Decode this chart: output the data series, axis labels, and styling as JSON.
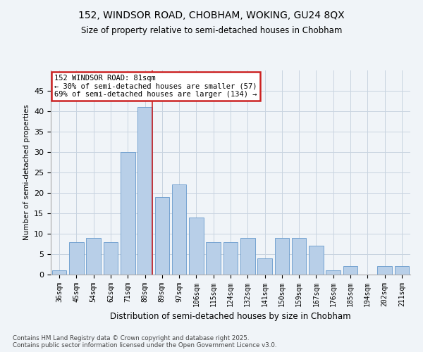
{
  "title_line1": "152, WINDSOR ROAD, CHOBHAM, WOKING, GU24 8QX",
  "title_line2": "Size of property relative to semi-detached houses in Chobham",
  "xlabel": "Distribution of semi-detached houses by size in Chobham",
  "ylabel": "Number of semi-detached properties",
  "categories": [
    "36sqm",
    "45sqm",
    "54sqm",
    "62sqm",
    "71sqm",
    "80sqm",
    "89sqm",
    "97sqm",
    "106sqm",
    "115sqm",
    "124sqm",
    "132sqm",
    "141sqm",
    "150sqm",
    "159sqm",
    "167sqm",
    "176sqm",
    "185sqm",
    "194sqm",
    "202sqm",
    "211sqm"
  ],
  "values": [
    1,
    8,
    9,
    8,
    30,
    41,
    19,
    22,
    14,
    8,
    8,
    9,
    4,
    9,
    9,
    7,
    1,
    2,
    0,
    2,
    2
  ],
  "bar_color": "#b8cfe8",
  "bar_edge_color": "#6699cc",
  "vline_color": "#cc2222",
  "vline_x_index": 5,
  "annotation_title": "152 WINDSOR ROAD: 81sqm",
  "annotation_line1": "← 30% of semi-detached houses are smaller (57)",
  "annotation_line2": "69% of semi-detached houses are larger (134) →",
  "annotation_box_edgecolor": "#cc2222",
  "ylim": [
    0,
    50
  ],
  "yticks": [
    0,
    5,
    10,
    15,
    20,
    25,
    30,
    35,
    40,
    45
  ],
  "footer_line1": "Contains HM Land Registry data © Crown copyright and database right 2025.",
  "footer_line2": "Contains public sector information licensed under the Open Government Licence v3.0.",
  "bg_color": "#f0f4f8",
  "grid_color": "#c8d4e0"
}
